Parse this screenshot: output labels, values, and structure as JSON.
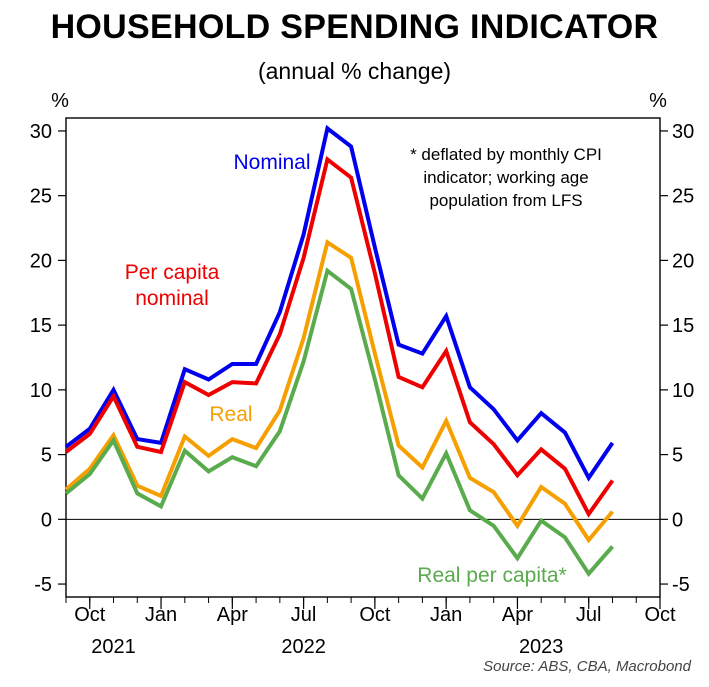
{
  "header": {
    "title": "HOUSEHOLD SPENDING INDICATOR",
    "subtitle": "(annual % change)"
  },
  "source": "Source: ABS, CBA, Macrobond",
  "chart_data": {
    "type": "line",
    "title": "HOUSEHOLD SPENDING INDICATOR",
    "subtitle": "(annual % change)",
    "y_unit_left": "%",
    "y_unit_right": "%",
    "ylim": [
      -6,
      31
    ],
    "yticks": [
      30,
      25,
      20,
      15,
      10,
      5,
      0,
      -5
    ],
    "ytick_labels": [
      "30",
      "25",
      "20",
      "15",
      "10",
      "5",
      "0",
      "-5"
    ],
    "x_range": [
      "2021-09",
      "2023-10"
    ],
    "x": [
      "2021-09",
      "2021-10",
      "2021-11",
      "2021-12",
      "2022-01",
      "2022-02",
      "2022-03",
      "2022-04",
      "2022-05",
      "2022-06",
      "2022-07",
      "2022-08",
      "2022-09",
      "2022-10",
      "2022-11",
      "2022-12",
      "2023-01",
      "2023-02",
      "2023-03",
      "2023-04",
      "2023-05",
      "2023-06",
      "2023-07",
      "2023-08"
    ],
    "xticks": [
      {
        "date": "2021-10",
        "label": "Oct"
      },
      {
        "date": "2022-01",
        "label": "Jan"
      },
      {
        "date": "2022-04",
        "label": "Apr"
      },
      {
        "date": "2022-07",
        "label": "Jul"
      },
      {
        "date": "2022-10",
        "label": "Oct"
      },
      {
        "date": "2023-01",
        "label": "Jan"
      },
      {
        "date": "2023-04",
        "label": "Apr"
      },
      {
        "date": "2023-07",
        "label": "Jul"
      },
      {
        "date": "2023-10",
        "label": "Oct"
      }
    ],
    "year_labels": [
      {
        "date": "2021-11",
        "label": "2021"
      },
      {
        "date": "2022-07",
        "label": "2022"
      },
      {
        "date": "2023-05",
        "label": "2023"
      }
    ],
    "zero_line": true,
    "series": [
      {
        "name": "Nominal",
        "color": "#0000ee",
        "values": [
          5.6,
          7.0,
          10.0,
          6.2,
          5.9,
          11.6,
          10.8,
          12.0,
          12.0,
          16.0,
          22.0,
          30.2,
          28.8,
          21.0,
          13.5,
          12.8,
          15.7,
          10.2,
          8.5,
          6.1,
          8.2,
          6.7,
          3.2,
          5.9
        ]
      },
      {
        "name": "Per capita nominal",
        "color": "#ee0000",
        "values": [
          5.2,
          6.6,
          9.5,
          5.6,
          5.2,
          10.6,
          9.6,
          10.6,
          10.5,
          14.3,
          20.2,
          27.8,
          26.4,
          19.0,
          11.0,
          10.2,
          13.0,
          7.5,
          5.8,
          3.4,
          5.4,
          3.9,
          0.4,
          3.0
        ]
      },
      {
        "name": "Real",
        "color": "#f5a000",
        "values": [
          2.3,
          3.9,
          6.5,
          2.6,
          1.8,
          6.4,
          4.9,
          6.2,
          5.5,
          8.4,
          14.0,
          21.4,
          20.2,
          12.8,
          5.7,
          4.0,
          7.6,
          3.2,
          2.1,
          -0.5,
          2.5,
          1.2,
          -1.6,
          0.6
        ]
      },
      {
        "name": "Real per capita*",
        "color": "#5aab4e",
        "values": [
          2.0,
          3.5,
          6.1,
          2.0,
          1.0,
          5.3,
          3.7,
          4.8,
          4.1,
          6.8,
          12.2,
          19.2,
          17.8,
          10.8,
          3.4,
          1.6,
          5.1,
          0.7,
          -0.5,
          -3.0,
          -0.1,
          -1.4,
          -4.2,
          -2.1
        ]
      }
    ],
    "annotations": [
      {
        "series": "Nominal",
        "lines": [
          "Nominal"
        ]
      },
      {
        "series": "Per capita nominal",
        "lines": [
          "Per capita",
          "nominal"
        ]
      },
      {
        "series": "Real",
        "lines": [
          "Real"
        ]
      },
      {
        "series": "Real per capita*",
        "lines": [
          "Real per capita*"
        ]
      },
      {
        "series": null,
        "lines": [
          "*  deflated by monthly CPI",
          "indicator; working age",
          "population from LFS"
        ]
      }
    ],
    "grid": false,
    "legend": "none"
  }
}
